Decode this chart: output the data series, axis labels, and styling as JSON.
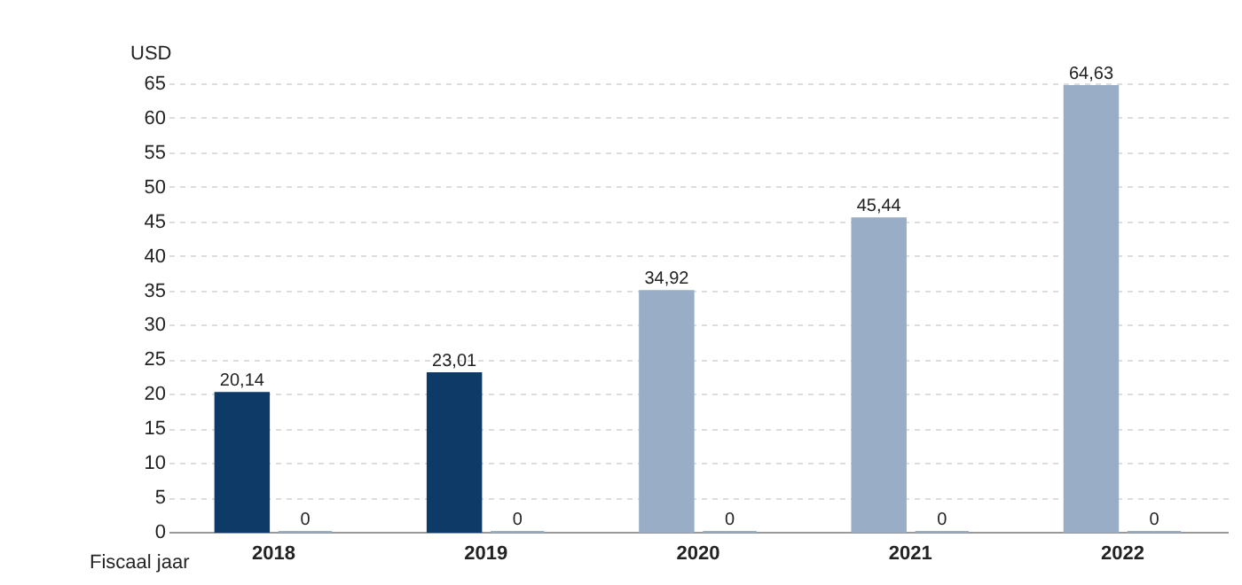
{
  "chart_data": {
    "type": "bar",
    "xlabel": "Fiscaal jaar",
    "ylabel": "USD",
    "categories": [
      "2018",
      "2019",
      "2020",
      "2021",
      "2022"
    ],
    "series": [
      {
        "colors": [
          "#0d3a67",
          "#0d3a67",
          "#99aec6",
          "#99aec6",
          "#99aec6"
        ],
        "values": [
          20.14,
          23.01,
          34.92,
          45.44,
          64.63
        ],
        "value_labels": [
          "20,14",
          "23,01",
          "34,92",
          "45,44",
          "64,63"
        ]
      },
      {
        "color": "#99aec6",
        "values": [
          0,
          0,
          0,
          0,
          0
        ],
        "value_labels": [
          "0",
          "0",
          "0",
          "0",
          "0"
        ]
      }
    ],
    "ylim": [
      0,
      65
    ],
    "yticks": [
      0,
      5,
      10,
      15,
      20,
      25,
      30,
      35,
      40,
      45,
      50,
      55,
      60,
      65
    ],
    "grid": "y"
  }
}
